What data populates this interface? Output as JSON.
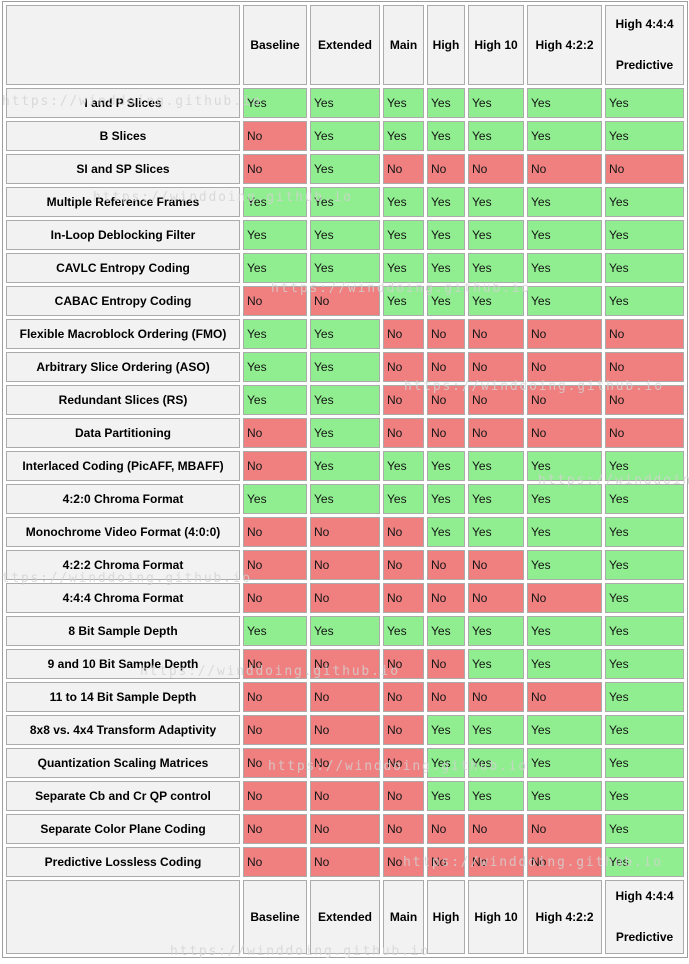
{
  "watermark": {
    "text": "https://winddoing.github.io"
  },
  "colors": {
    "yes": "#90EE90",
    "no": "#F08080",
    "header_bg": "#F2F2F2",
    "cell_border": "#ABABAB",
    "watermark": "#D2D2D2"
  },
  "chart_data": {
    "type": "table",
    "title": "",
    "columns": [
      {
        "line1": "Baseline",
        "line2": ""
      },
      {
        "line1": "Extended",
        "line2": ""
      },
      {
        "line1": "Main",
        "line2": ""
      },
      {
        "line1": "High",
        "line2": ""
      },
      {
        "line1": "High 10",
        "line2": ""
      },
      {
        "line1": "High 4:2:2",
        "line2": ""
      },
      {
        "line1": "High 4:4:4",
        "line2": "Predictive"
      }
    ],
    "rows": [
      {
        "feature": "I and P Slices",
        "values": [
          "Yes",
          "Yes",
          "Yes",
          "Yes",
          "Yes",
          "Yes",
          "Yes"
        ]
      },
      {
        "feature": "B Slices",
        "values": [
          "No",
          "Yes",
          "Yes",
          "Yes",
          "Yes",
          "Yes",
          "Yes"
        ]
      },
      {
        "feature": "SI and SP Slices",
        "values": [
          "No",
          "Yes",
          "No",
          "No",
          "No",
          "No",
          "No"
        ]
      },
      {
        "feature": "Multiple Reference Frames",
        "values": [
          "Yes",
          "Yes",
          "Yes",
          "Yes",
          "Yes",
          "Yes",
          "Yes"
        ]
      },
      {
        "feature": "In-Loop Deblocking Filter",
        "values": [
          "Yes",
          "Yes",
          "Yes",
          "Yes",
          "Yes",
          "Yes",
          "Yes"
        ]
      },
      {
        "feature": "CAVLC Entropy Coding",
        "values": [
          "Yes",
          "Yes",
          "Yes",
          "Yes",
          "Yes",
          "Yes",
          "Yes"
        ]
      },
      {
        "feature": "CABAC Entropy Coding",
        "values": [
          "No",
          "No",
          "Yes",
          "Yes",
          "Yes",
          "Yes",
          "Yes"
        ]
      },
      {
        "feature": "Flexible Macroblock Ordering (FMO)",
        "values": [
          "Yes",
          "Yes",
          "No",
          "No",
          "No",
          "No",
          "No"
        ]
      },
      {
        "feature": "Arbitrary Slice Ordering (ASO)",
        "values": [
          "Yes",
          "Yes",
          "No",
          "No",
          "No",
          "No",
          "No"
        ]
      },
      {
        "feature": "Redundant Slices (RS)",
        "values": [
          "Yes",
          "Yes",
          "No",
          "No",
          "No",
          "No",
          "No"
        ]
      },
      {
        "feature": "Data Partitioning",
        "values": [
          "No",
          "Yes",
          "No",
          "No",
          "No",
          "No",
          "No"
        ]
      },
      {
        "feature": "Interlaced Coding (PicAFF, MBAFF)",
        "values": [
          "No",
          "Yes",
          "Yes",
          "Yes",
          "Yes",
          "Yes",
          "Yes"
        ]
      },
      {
        "feature": "4:2:0 Chroma Format",
        "values": [
          "Yes",
          "Yes",
          "Yes",
          "Yes",
          "Yes",
          "Yes",
          "Yes"
        ]
      },
      {
        "feature": "Monochrome Video Format (4:0:0)",
        "values": [
          "No",
          "No",
          "No",
          "Yes",
          "Yes",
          "Yes",
          "Yes"
        ]
      },
      {
        "feature": "4:2:2 Chroma Format",
        "values": [
          "No",
          "No",
          "No",
          "No",
          "No",
          "Yes",
          "Yes"
        ]
      },
      {
        "feature": "4:4:4 Chroma Format",
        "values": [
          "No",
          "No",
          "No",
          "No",
          "No",
          "No",
          "Yes"
        ]
      },
      {
        "feature": "8 Bit Sample Depth",
        "values": [
          "Yes",
          "Yes",
          "Yes",
          "Yes",
          "Yes",
          "Yes",
          "Yes"
        ]
      },
      {
        "feature": "9 and 10 Bit Sample Depth",
        "values": [
          "No",
          "No",
          "No",
          "No",
          "Yes",
          "Yes",
          "Yes"
        ]
      },
      {
        "feature": "11 to 14 Bit Sample Depth",
        "values": [
          "No",
          "No",
          "No",
          "No",
          "No",
          "No",
          "Yes"
        ]
      },
      {
        "feature": "8x8 vs. 4x4 Transform Adaptivity",
        "values": [
          "No",
          "No",
          "No",
          "Yes",
          "Yes",
          "Yes",
          "Yes"
        ]
      },
      {
        "feature": "Quantization Scaling Matrices",
        "values": [
          "No",
          "No",
          "No",
          "Yes",
          "Yes",
          "Yes",
          "Yes"
        ]
      },
      {
        "feature": "Separate Cb and Cr QP control",
        "values": [
          "No",
          "No",
          "No",
          "Yes",
          "Yes",
          "Yes",
          "Yes"
        ]
      },
      {
        "feature": "Separate Color Plane Coding",
        "values": [
          "No",
          "No",
          "No",
          "No",
          "No",
          "No",
          "Yes"
        ]
      },
      {
        "feature": "Predictive Lossless Coding",
        "values": [
          "No",
          "No",
          "No",
          "No",
          "No",
          "No",
          "Yes"
        ]
      }
    ]
  }
}
